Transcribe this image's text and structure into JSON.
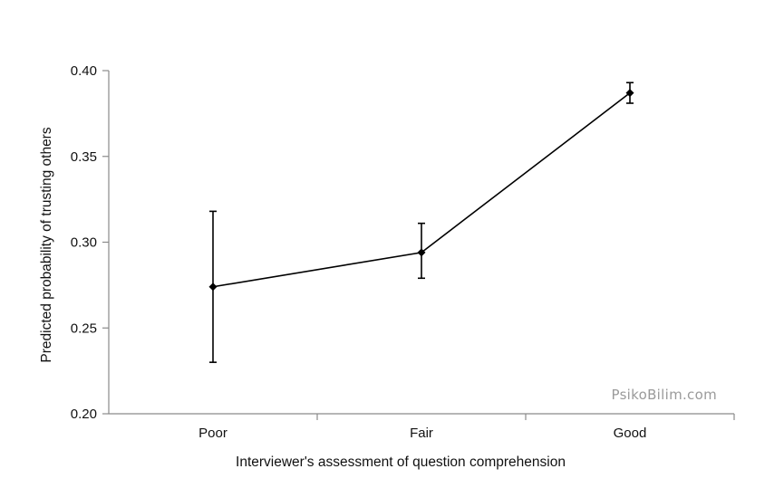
{
  "chart_data": {
    "type": "line",
    "title": "",
    "xlabel": "Interviewer's assessment of question comprehension",
    "ylabel": "Predicted probability of trusting others",
    "categories": [
      "Poor",
      "Fair",
      "Good"
    ],
    "series": [
      {
        "values": [
          0.274,
          0.294,
          0.387
        ],
        "error_lower": [
          0.23,
          0.279,
          0.381
        ],
        "error_upper": [
          0.318,
          0.311,
          0.393
        ]
      }
    ],
    "ylim": [
      0.2,
      0.4
    ],
    "yticks": [
      "0.20",
      "0.25",
      "0.30",
      "0.35",
      "0.40"
    ],
    "grid": false,
    "legend": "none",
    "marker": "diamond",
    "line_color": "#000000"
  },
  "watermark": "PsikoBilim.com"
}
